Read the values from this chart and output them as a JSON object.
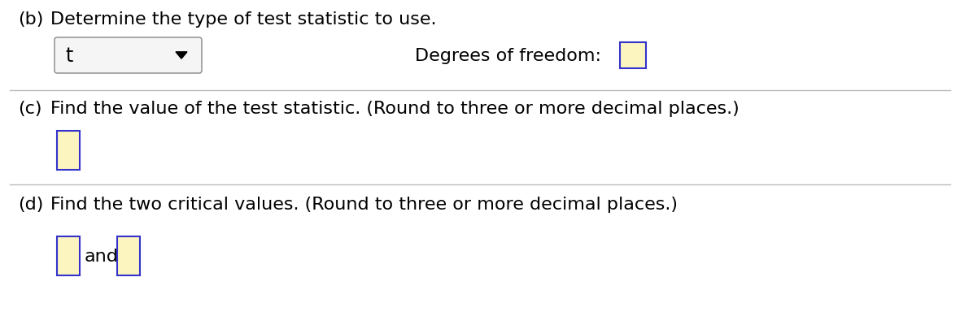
{
  "bg_color": "#ffffff",
  "text_color": "#000000",
  "box_fill": "#fdf5c0",
  "box_edge": "#3333cc",
  "dropdown_fill": "#f5f5f5",
  "dropdown_edge": "#999999",
  "section_b_label": "(b)",
  "section_b_text": "Determine the type of test statistic to use.",
  "dropdown_text": "t",
  "degrees_label": "Degrees of freedom:",
  "section_c_label": "(c)",
  "section_c_text": "Find the value of the test statistic. (Round to three or more decimal places.)",
  "section_d_label": "(d)",
  "section_d_text": "Find the two critical values. (Round to three or more decimal places.)",
  "and_text": "and",
  "font_size": 16,
  "divider_color": "#bbbbbb",
  "figw": 11.8,
  "figh": 4.06,
  "dpi": 100
}
